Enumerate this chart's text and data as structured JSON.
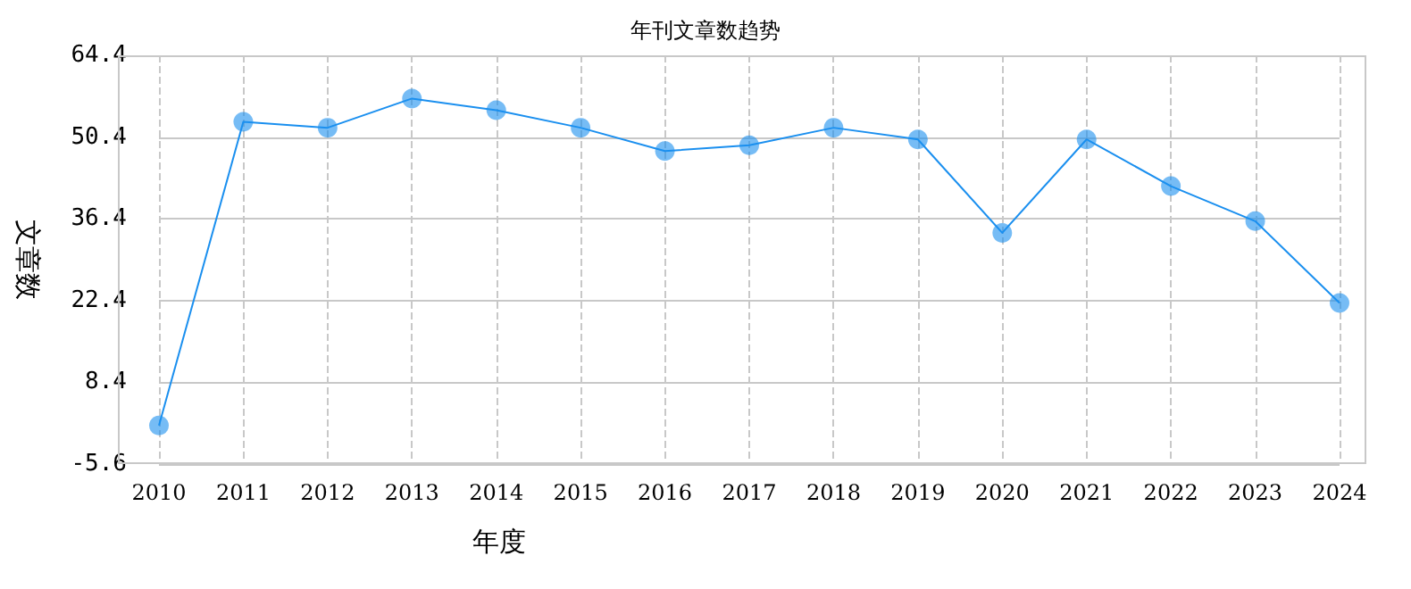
{
  "chart_data": {
    "type": "line",
    "title": "年刊文章数趋势",
    "xlabel": "年度",
    "ylabel": "文章数",
    "categories": [
      "2010",
      "2011",
      "2012",
      "2013",
      "2014",
      "2015",
      "2016",
      "2017",
      "2018",
      "2019",
      "2020",
      "2021",
      "2022",
      "2023",
      "2024"
    ],
    "series": [
      {
        "color": "#1a8fef",
        "values": [
          1,
          53,
          52,
          57,
          55,
          52,
          48,
          49,
          52,
          50,
          34,
          50,
          42,
          36,
          22
        ]
      }
    ],
    "ylim": [
      -5.6,
      64.4
    ],
    "yticks": [
      -5.6,
      8.4,
      22.4,
      36.4,
      50.4,
      64.4
    ],
    "grid": true,
    "marker": "circle",
    "line_style": "solid"
  }
}
